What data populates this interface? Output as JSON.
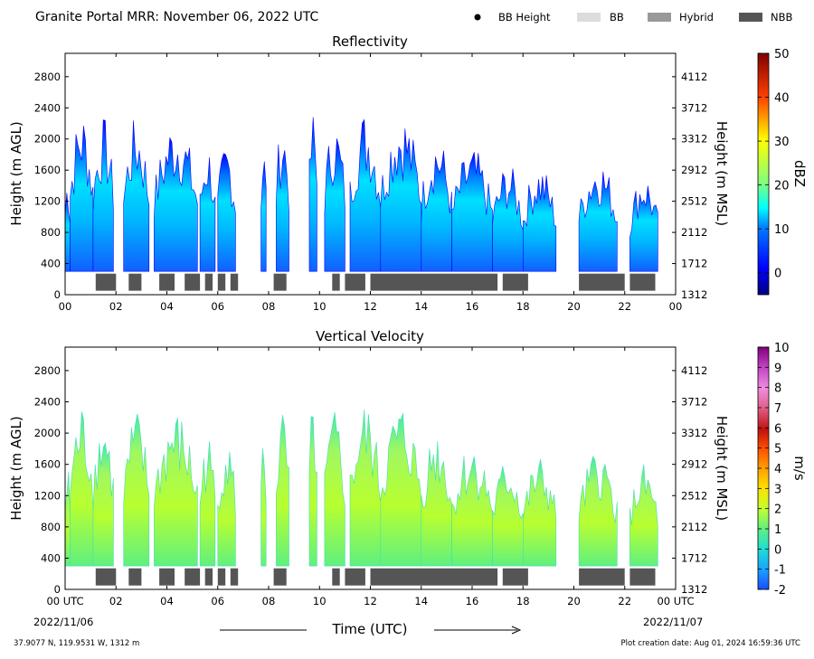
{
  "header": {
    "title": "Granite Portal MRR:  November 06, 2022 UTC",
    "legend": [
      {
        "label": "BB Height",
        "marker": "dot",
        "color": "#000000"
      },
      {
        "label": "BB",
        "marker": "patch",
        "color": "#dcdcdc"
      },
      {
        "label": "Hybrid",
        "marker": "patch",
        "color": "#999999"
      },
      {
        "label": "NBB",
        "marker": "patch",
        "color": "#555555"
      }
    ]
  },
  "footer": {
    "location": "37.9077 N, 119.9531 W, 1312 m",
    "creation": "Plot creation date: Aug 01, 2024 16:59:36 UTC",
    "xlabel": "Time (UTC)",
    "start_date": "2022/11/06",
    "end_date": "2022/11/07"
  },
  "chart_data": [
    {
      "type": "heatmap",
      "title": "Reflectivity",
      "ylabel": "Height (m AGL)",
      "ylabel_right": "Height (m MSL)",
      "colorbar_label": "dBZ",
      "xlim": [
        0,
        24
      ],
      "ylim": [
        0,
        3100
      ],
      "x_ticks": [
        "00",
        "02",
        "04",
        "06",
        "08",
        "10",
        "12",
        "14",
        "16",
        "18",
        "20",
        "22",
        "00"
      ],
      "y_ticks": [
        0,
        400,
        800,
        1200,
        1600,
        2000,
        2400,
        2800
      ],
      "y_ticks_right": [
        "1312",
        "1712",
        "2112",
        "2512",
        "2912",
        "3312",
        "3712",
        "4112"
      ],
      "colorbar": {
        "min": -5,
        "max": 50,
        "ticks": [
          0,
          10,
          20,
          30,
          40,
          50
        ]
      },
      "grid": false
    },
    {
      "type": "heatmap",
      "title": "Vertical Velocity",
      "ylabel": "Height (m AGL)",
      "ylabel_right": "Height (m MSL)",
      "colorbar_label": "m/s",
      "xlim": [
        0,
        24
      ],
      "ylim": [
        0,
        3100
      ],
      "x_ticks": [
        "00 UTC",
        "02",
        "04",
        "06",
        "08",
        "10",
        "12",
        "14",
        "16",
        "18",
        "20",
        "22",
        "00 UTC"
      ],
      "y_ticks": [
        0,
        400,
        800,
        1200,
        1600,
        2000,
        2400,
        2800
      ],
      "y_ticks_right": [
        "1312",
        "1712",
        "2112",
        "2512",
        "2912",
        "3312",
        "3712",
        "4112"
      ],
      "colorbar": {
        "min": -2,
        "max": 10,
        "ticks": [
          -2,
          -1,
          0,
          1,
          2,
          3,
          4,
          5,
          6,
          7,
          8,
          9,
          10
        ]
      },
      "grid": false
    }
  ],
  "precip_columns": [
    {
      "start": 0.0,
      "end": 0.2,
      "top": 1600
    },
    {
      "start": 0.2,
      "end": 1.1,
      "top": 2400
    },
    {
      "start": 1.1,
      "end": 1.9,
      "top": 2300
    },
    {
      "start": 2.3,
      "end": 3.3,
      "top": 2300
    },
    {
      "start": 3.5,
      "end": 5.2,
      "top": 2300
    },
    {
      "start": 5.3,
      "end": 5.9,
      "top": 2000
    },
    {
      "start": 6.0,
      "end": 6.7,
      "top": 2000
    },
    {
      "start": 7.7,
      "end": 7.9,
      "top": 2000
    },
    {
      "start": 8.3,
      "end": 8.8,
      "top": 2300
    },
    {
      "start": 9.6,
      "end": 9.9,
      "top": 2400
    },
    {
      "start": 10.2,
      "end": 11.0,
      "top": 2300
    },
    {
      "start": 11.2,
      "end": 12.4,
      "top": 2400
    },
    {
      "start": 12.4,
      "end": 14.0,
      "top": 2400
    },
    {
      "start": 14.0,
      "end": 15.2,
      "top": 2100
    },
    {
      "start": 15.2,
      "end": 16.8,
      "top": 1900
    },
    {
      "start": 16.8,
      "end": 18.0,
      "top": 1700
    },
    {
      "start": 18.0,
      "end": 19.3,
      "top": 1700
    },
    {
      "start": 20.2,
      "end": 21.7,
      "top": 1800
    },
    {
      "start": 22.2,
      "end": 23.3,
      "top": 1600
    }
  ],
  "nbb_segments": [
    [
      1.2,
      2.0
    ],
    [
      2.5,
      3.0
    ],
    [
      3.7,
      4.3
    ],
    [
      4.7,
      5.3
    ],
    [
      5.5,
      5.8
    ],
    [
      6.0,
      6.3
    ],
    [
      6.5,
      6.8
    ],
    [
      8.2,
      8.7
    ],
    [
      10.5,
      10.8
    ],
    [
      11.0,
      11.8
    ],
    [
      12.0,
      17.0
    ],
    [
      17.2,
      18.2
    ],
    [
      20.2,
      22.0
    ],
    [
      22.2,
      23.2
    ]
  ],
  "colors": {
    "nbb": "#555555",
    "echo_edge": "#0000ff",
    "velocity_edge": "#40e0b0"
  }
}
